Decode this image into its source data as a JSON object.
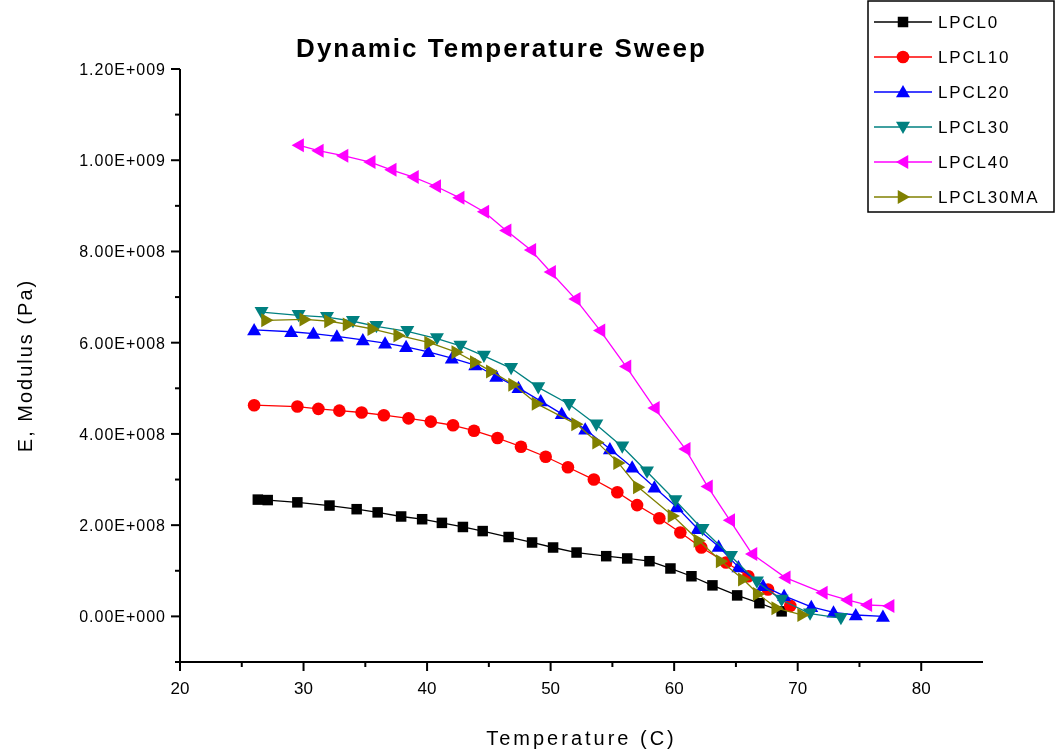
{
  "chart_data": {
    "type": "line",
    "title": "Dynamic Temperature Sweep",
    "xlabel": "Temperature (C)",
    "ylabel": "E, Modulus (Pa)",
    "legend": "top right",
    "line_style": "solid",
    "grid": false,
    "xlim": [
      20,
      85
    ],
    "xticks": [
      20,
      {
        "value": 25,
        "label": null
      },
      30,
      {
        "value": 35,
        "label": null
      },
      40,
      {
        "value": 45,
        "label": null
      },
      50,
      {
        "value": 55,
        "label": null
      },
      60,
      {
        "value": 65,
        "label": null
      },
      70,
      {
        "value": 75,
        "label": null
      },
      80
    ],
    "ylim": [
      -100000000.0,
      1200000000.0
    ],
    "yticks": [
      {
        "value": -100000000.0,
        "label": null
      },
      {
        "value": 0,
        "label": "0.00E+000"
      },
      {
        "value": 100000000.0,
        "label": null
      },
      {
        "value": 200000000.0,
        "label": "2.00E+008"
      },
      {
        "value": 300000000.0,
        "label": null
      },
      {
        "value": 400000000.0,
        "label": "4.00E+008"
      },
      {
        "value": 500000000.0,
        "label": null
      },
      {
        "value": 600000000.0,
        "label": "6.00E+008"
      },
      {
        "value": 700000000.0,
        "label": null
      },
      {
        "value": 800000000.0,
        "label": "8.00E+008"
      },
      {
        "value": 900000000.0,
        "label": null
      },
      {
        "value": 1000000000.0,
        "label": "1.00E+009"
      },
      {
        "value": 1100000000.0,
        "label": null
      },
      {
        "value": 1200000000.0,
        "label": "1.20E+009"
      }
    ],
    "series": [
      {
        "name": "LPCL0",
        "color": "#000000",
        "marker": "square",
        "x": [
          26.3,
          27.1,
          29.5,
          32.1,
          34.3,
          36.0,
          37.9,
          39.6,
          41.2,
          42.9,
          44.5,
          46.6,
          48.5,
          50.2,
          52.1,
          54.5,
          56.2,
          58.0,
          59.7,
          61.4,
          63.1,
          65.1,
          66.9,
          68.7
        ],
        "values": [
          256000000.0,
          255000000.0,
          250000000.0,
          243000000.0,
          235000000.0,
          228000000.0,
          219000000.0,
          213000000.0,
          205000000.0,
          196000000.0,
          187000000.0,
          174000000.0,
          162000000.0,
          151000000.0,
          140000000.0,
          132000000.0,
          127000000.0,
          121000000.0,
          105000000.0,
          88000000.0,
          68000000.0,
          46000000.0,
          29000000.0,
          11000000.0
        ]
      },
      {
        "name": "LPCL10",
        "color": "#ff0000",
        "marker": "circle",
        "x": [
          26.0,
          29.5,
          31.2,
          32.9,
          34.7,
          36.5,
          38.5,
          40.3,
          42.1,
          43.8,
          45.7,
          47.6,
          49.6,
          51.4,
          53.5,
          55.4,
          57.0,
          58.8,
          60.5,
          62.2,
          64.2,
          66.0,
          67.6,
          69.4
        ],
        "values": [
          463000000.0,
          460000000.0,
          455000000.0,
          451000000.0,
          447000000.0,
          441000000.0,
          434000000.0,
          427000000.0,
          419000000.0,
          407000000.0,
          391000000.0,
          372000000.0,
          350000000.0,
          327000000.0,
          300000000.0,
          272000000.0,
          244000000.0,
          215000000.0,
          184000000.0,
          151000000.0,
          118000000.0,
          88000000.0,
          59000000.0,
          23000000.0
        ]
      },
      {
        "name": "LPCL20",
        "color": "#0000ff",
        "marker": "triangle",
        "x": [
          26.0,
          29.0,
          30.8,
          32.7,
          34.8,
          36.6,
          38.3,
          40.1,
          42.0,
          43.9,
          45.6,
          47.4,
          49.2,
          50.9,
          52.8,
          54.8,
          56.6,
          58.4,
          60.2,
          61.9,
          63.6,
          65.2,
          67.2,
          68.9,
          71.1,
          72.9,
          74.7,
          76.9
        ],
        "values": [
          628000000.0,
          624000000.0,
          620000000.0,
          614000000.0,
          606000000.0,
          599000000.0,
          591000000.0,
          580000000.0,
          566000000.0,
          551000000.0,
          526000000.0,
          501000000.0,
          472000000.0,
          444000000.0,
          410000000.0,
          367000000.0,
          327000000.0,
          283000000.0,
          240000000.0,
          192000000.0,
          153000000.0,
          108000000.0,
          67000000.0,
          45000000.0,
          21000000.0,
          9000000.0,
          3000000.0,
          0
        ]
      },
      {
        "name": "LPCL30",
        "color": "#008080",
        "marker": "triangle-down",
        "x": [
          26.6,
          29.6,
          31.9,
          34.0,
          35.9,
          38.4,
          40.8,
          42.7,
          44.6,
          46.8,
          49.0,
          51.5,
          53.7,
          55.8,
          57.8,
          60.1,
          62.3,
          64.6,
          66.7,
          68.7,
          71.0,
          73.5
        ],
        "values": [
          667000000.0,
          660000000.0,
          656000000.0,
          647000000.0,
          636000000.0,
          625000000.0,
          609000000.0,
          593000000.0,
          571000000.0,
          544000000.0,
          502000000.0,
          465000000.0,
          420000000.0,
          372000000.0,
          317000000.0,
          254000000.0,
          191000000.0,
          132000000.0,
          76000000.0,
          36000000.0,
          6000000.0,
          -4000000.0
        ]
      },
      {
        "name": "LPCL40",
        "color": "#ff00ff",
        "marker": "triangle-left",
        "x": [
          29.6,
          31.2,
          33.2,
          35.4,
          37.1,
          38.9,
          40.7,
          42.6,
          44.6,
          46.4,
          48.4,
          50.0,
          52.0,
          54.0,
          56.1,
          58.4,
          60.9,
          62.7,
          64.5,
          66.3,
          69.0,
          72.0,
          74.0,
          75.6,
          77.4
        ],
        "values": [
          1033000000.0,
          1021000000.0,
          1010000000.0,
          996000000.0,
          979000000.0,
          963000000.0,
          943000000.0,
          918000000.0,
          887000000.0,
          846000000.0,
          803000000.0,
          755000000.0,
          696000000.0,
          627000000.0,
          548000000.0,
          457000000.0,
          367000000.0,
          285000000.0,
          211000000.0,
          137000000.0,
          85000000.0,
          52000000.0,
          36000000.0,
          25000000.0,
          23000000.0
        ]
      },
      {
        "name": "LPCL30MA",
        "color": "#808000",
        "marker": "triangle-right",
        "x": [
          27.0,
          30.1,
          32.1,
          33.6,
          35.6,
          37.7,
          40.2,
          42.4,
          43.9,
          45.2,
          47.0,
          48.9,
          52.1,
          53.8,
          55.5,
          57.1,
          59.9,
          62.0,
          63.8,
          65.6,
          66.8,
          68.3,
          70.4
        ],
        "values": [
          649000000.0,
          651000000.0,
          647000000.0,
          640000000.0,
          630000000.0,
          616000000.0,
          600000000.0,
          579000000.0,
          557000000.0,
          537000000.0,
          508000000.0,
          466000000.0,
          421000000.0,
          381000000.0,
          336000000.0,
          283000000.0,
          220000000.0,
          166000000.0,
          121000000.0,
          81000000.0,
          49000000.0,
          18000000.0,
          3000000.0
        ]
      }
    ]
  }
}
